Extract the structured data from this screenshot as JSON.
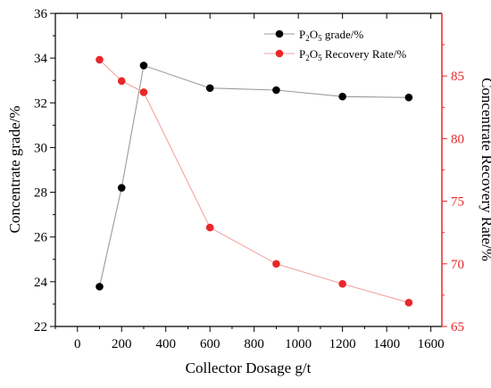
{
  "chart_data": {
    "type": "line",
    "title": "",
    "xlabel": "Collector Dosage g/t",
    "ylabel_left": "Concentrate grade/%",
    "ylabel_right": "Concentrate Recovery Rate/%",
    "xlim": [
      -100,
      1650
    ],
    "xticks": [
      0,
      200,
      400,
      600,
      800,
      1000,
      1200,
      1400,
      1600
    ],
    "ylim_left": [
      22,
      36
    ],
    "yticks_left": [
      22,
      24,
      26,
      28,
      30,
      32,
      34,
      36
    ],
    "ylim_right": [
      65,
      90
    ],
    "yticks_right": [
      65,
      70,
      75,
      80,
      85
    ],
    "grid": false,
    "legend_position": "top-right",
    "series": [
      {
        "name": "P2O5 grade/%",
        "legend_main": "P",
        "legend_sub": "2",
        "legend_mid": "O",
        "legend_sub2": "5",
        "legend_tail": " grade/%",
        "axis": "left",
        "color": "#000000",
        "line_color": "#9a9a9a",
        "x": [
          100,
          200,
          300,
          600,
          900,
          1200,
          1500
        ],
        "y": [
          23.78,
          28.2,
          33.67,
          32.66,
          32.57,
          32.28,
          32.24
        ]
      },
      {
        "name": "P2O5 Recovery Rate/%",
        "legend_main": "P",
        "legend_sub": "2",
        "legend_mid": "O",
        "legend_sub2": "5",
        "legend_tail": " Recovery Rate/%",
        "axis": "right",
        "color": "#e8272a",
        "line_color": "#f4a3a3",
        "x": [
          100,
          200,
          300,
          600,
          900,
          1200,
          1500
        ],
        "y": [
          86.3,
          84.6,
          83.7,
          72.9,
          70.0,
          68.4,
          66.9
        ]
      }
    ]
  }
}
